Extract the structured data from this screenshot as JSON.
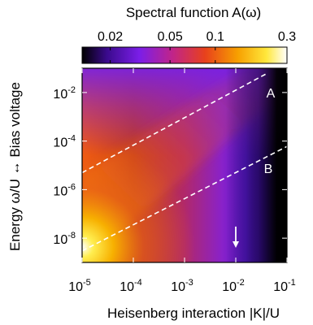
{
  "chart_data": {
    "type": "heatmap",
    "colorbar": {
      "title": "Spectral function A(ω)",
      "scale": "log",
      "range": [
        0.013,
        0.3
      ],
      "ticks": [
        {
          "value": 0.02,
          "label": "0.02"
        },
        {
          "value": 0.05,
          "label": "0.05"
        },
        {
          "value": 0.1,
          "label": "0.1"
        },
        {
          "value": 0.3,
          "label": "0.3"
        }
      ],
      "colormap": [
        "#000000",
        "#3a0a8c",
        "#7b1ee8",
        "#c0248a",
        "#e8411c",
        "#f7a000",
        "#ffe83c",
        "#ffffff"
      ]
    },
    "xlabel": "Heisenberg interaction |K|/U",
    "ylabel": "Energy ω/U ↔ Bias voltage",
    "x_scale": "log",
    "y_scale": "log",
    "xlim": [
      1e-05,
      0.1
    ],
    "ylim": [
      1e-09,
      0.1
    ],
    "xticks": [
      {
        "value": 1e-05,
        "base": "10",
        "exp": "-5"
      },
      {
        "value": 0.0001,
        "base": "10",
        "exp": "-4"
      },
      {
        "value": 0.001,
        "base": "10",
        "exp": "-3"
      },
      {
        "value": 0.01,
        "base": "10",
        "exp": "-2"
      },
      {
        "value": 0.1,
        "base": "10",
        "exp": "-1"
      }
    ],
    "yticks": [
      {
        "value": 0.01,
        "base": "10",
        "exp": "-2"
      },
      {
        "value": 0.0001,
        "base": "10",
        "exp": "-4"
      },
      {
        "value": 1e-06,
        "base": "10",
        "exp": "-6"
      },
      {
        "value": 1e-08,
        "base": "10",
        "exp": "-8"
      }
    ],
    "lines": [
      {
        "label": "A",
        "style": "dashed",
        "color": "#ffffff",
        "points": [
          [
            1e-05,
            5e-06
          ],
          [
            0.04,
            0.06
          ]
        ]
      },
      {
        "label": "B",
        "style": "dashed",
        "color": "#ffffff",
        "points": [
          [
            1e-05,
            3e-09
          ],
          [
            0.1,
            6e-05
          ]
        ]
      }
    ],
    "annotations": [
      {
        "type": "arrow",
        "direction": "down",
        "color": "#ffffff",
        "x": 0.01,
        "y_from": 3e-08,
        "y_to": 4e-09
      }
    ]
  }
}
